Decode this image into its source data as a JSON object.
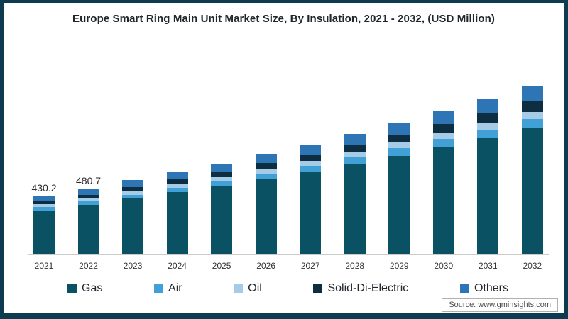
{
  "title": "Europe Smart Ring Main Unit Market Size, By Insulation, 2021 - 2032, (USD Million)",
  "source": "Source: www.gminsights.com",
  "colors": {
    "frame_border": "#0d3b50",
    "baseline": "#cccccc",
    "title_text": "#20262e",
    "axis_text": "#333333",
    "source_text": "#4a4a4a",
    "source_border": "#b0b0b0"
  },
  "chart_data": {
    "type": "bar",
    "stacked": true,
    "title": "Europe Smart Ring Main Unit Market Size, By Insulation, 2021 - 2032, (USD Million)",
    "unit": "USD Million",
    "xlabel": "",
    "ylabel": "",
    "grid": false,
    "legend_position": "bottom",
    "categories": [
      "2021",
      "2022",
      "2023",
      "2024",
      "2025",
      "2026",
      "2027",
      "2028",
      "2029",
      "2030",
      "2031",
      "2032"
    ],
    "totals": [
      430.2,
      480.7,
      543,
      605,
      663,
      735,
      803,
      880,
      963,
      1050,
      1135,
      1228
    ],
    "bar_labels": [
      "430.2",
      "480.7",
      "",
      "",
      "",
      "",
      "",
      "",
      "",
      "",
      "",
      ""
    ],
    "series": [
      {
        "name": "Gas",
        "color": "#0b5164",
        "values": [
          322.7,
          360.5,
          407.3,
          453.8,
          497.3,
          551.3,
          602.3,
          660.0,
          722.3,
          787.5,
          851.3,
          921.0
        ]
      },
      {
        "name": "Air",
        "color": "#41a1d6",
        "values": [
          23.7,
          26.4,
          29.9,
          33.3,
          36.5,
          40.4,
          44.2,
          48.4,
          53.0,
          57.8,
          62.4,
          67.5
        ]
      },
      {
        "name": "Oil",
        "color": "#a5cbe7",
        "values": [
          19.4,
          21.6,
          24.4,
          27.2,
          29.8,
          33.1,
          36.1,
          39.6,
          43.3,
          47.3,
          51.1,
          55.3
        ]
      },
      {
        "name": "Solid-Di-Electric",
        "color": "#0d2d40",
        "values": [
          25.8,
          28.8,
          32.6,
          36.3,
          39.8,
          44.1,
          48.2,
          52.8,
          57.8,
          63.0,
          68.1,
          73.7
        ]
      },
      {
        "name": "Others",
        "color": "#2e75b6",
        "values": [
          38.7,
          43.3,
          48.9,
          54.5,
          59.7,
          66.2,
          72.3,
          79.2,
          86.7,
          94.5,
          102.2,
          110.5
        ]
      }
    ]
  }
}
